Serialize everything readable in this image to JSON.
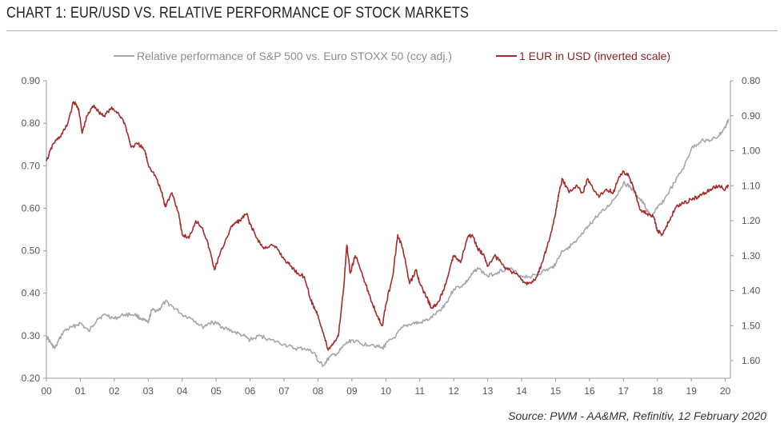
{
  "header": {
    "title": "CHART 1: EUR/USD VS. RELATIVE PERFORMANCE OF STOCK MARKETS"
  },
  "footer": {
    "source": "Source: PWM - AA&MR, Refinitiv, 12 February 2020"
  },
  "chart_data": {
    "type": "line",
    "legend_position": "top",
    "grid": false,
    "x_ticks": [
      "00",
      "01",
      "02",
      "03",
      "04",
      "05",
      "06",
      "07",
      "08",
      "09",
      "10",
      "11",
      "12",
      "13",
      "14",
      "15",
      "16",
      "17",
      "18",
      "19",
      "20"
    ],
    "xlim": [
      2000.0,
      2020.15
    ],
    "y_left": {
      "ticks": [
        "0.20",
        "0.30",
        "0.40",
        "0.50",
        "0.60",
        "0.70",
        "0.80",
        "0.90"
      ],
      "ylim": [
        0.2,
        0.9
      ]
    },
    "y_right": {
      "ticks": [
        "0.80",
        "0.90",
        "1.00",
        "1.10",
        "1.20",
        "1.30",
        "1.40",
        "1.50",
        "1.60"
      ],
      "ylim": [
        0.8,
        1.65
      ],
      "inverted": true
    },
    "series": [
      {
        "name": "Relative performance of S&P 500 vs. Euro STOXX 50 (ccy adj.)",
        "axis": "left",
        "color": "#a6a6a6",
        "points": [
          [
            2000.0,
            0.3
          ],
          [
            2000.15,
            0.28
          ],
          [
            2000.25,
            0.27
          ],
          [
            2000.5,
            0.31
          ],
          [
            2000.75,
            0.32
          ],
          [
            2001.0,
            0.33
          ],
          [
            2001.25,
            0.31
          ],
          [
            2001.5,
            0.34
          ],
          [
            2001.75,
            0.35
          ],
          [
            2002.0,
            0.34
          ],
          [
            2002.3,
            0.35
          ],
          [
            2002.6,
            0.35
          ],
          [
            2002.8,
            0.34
          ],
          [
            2003.0,
            0.33
          ],
          [
            2003.1,
            0.36
          ],
          [
            2003.3,
            0.36
          ],
          [
            2003.5,
            0.38
          ],
          [
            2003.7,
            0.37
          ],
          [
            2004.0,
            0.35
          ],
          [
            2004.3,
            0.34
          ],
          [
            2004.6,
            0.32
          ],
          [
            2004.8,
            0.33
          ],
          [
            2005.0,
            0.33
          ],
          [
            2005.2,
            0.32
          ],
          [
            2005.5,
            0.31
          ],
          [
            2005.8,
            0.3
          ],
          [
            2006.0,
            0.29
          ],
          [
            2006.3,
            0.3
          ],
          [
            2006.6,
            0.29
          ],
          [
            2007.0,
            0.28
          ],
          [
            2007.3,
            0.27
          ],
          [
            2007.6,
            0.27
          ],
          [
            2007.9,
            0.26
          ],
          [
            2008.0,
            0.24
          ],
          [
            2008.15,
            0.23
          ],
          [
            2008.35,
            0.25
          ],
          [
            2008.6,
            0.26
          ],
          [
            2008.8,
            0.28
          ],
          [
            2009.0,
            0.29
          ],
          [
            2009.3,
            0.28
          ],
          [
            2009.6,
            0.28
          ],
          [
            2009.9,
            0.27
          ],
          [
            2010.0,
            0.28
          ],
          [
            2010.3,
            0.3
          ],
          [
            2010.5,
            0.32
          ],
          [
            2010.8,
            0.33
          ],
          [
            2011.0,
            0.33
          ],
          [
            2011.3,
            0.34
          ],
          [
            2011.6,
            0.36
          ],
          [
            2011.8,
            0.38
          ],
          [
            2012.0,
            0.41
          ],
          [
            2012.3,
            0.42
          ],
          [
            2012.5,
            0.44
          ],
          [
            2012.7,
            0.46
          ],
          [
            2013.0,
            0.44
          ],
          [
            2013.3,
            0.45
          ],
          [
            2013.6,
            0.46
          ],
          [
            2014.0,
            0.44
          ],
          [
            2014.3,
            0.44
          ],
          [
            2014.6,
            0.45
          ],
          [
            2014.9,
            0.46
          ],
          [
            2015.0,
            0.47
          ],
          [
            2015.2,
            0.5
          ],
          [
            2015.4,
            0.51
          ],
          [
            2015.6,
            0.52
          ],
          [
            2015.8,
            0.54
          ],
          [
            2016.0,
            0.56
          ],
          [
            2016.2,
            0.58
          ],
          [
            2016.5,
            0.6
          ],
          [
            2016.8,
            0.63
          ],
          [
            2017.0,
            0.66
          ],
          [
            2017.2,
            0.65
          ],
          [
            2017.4,
            0.63
          ],
          [
            2017.6,
            0.61
          ],
          [
            2017.8,
            0.58
          ],
          [
            2018.0,
            0.6
          ],
          [
            2018.2,
            0.62
          ],
          [
            2018.5,
            0.66
          ],
          [
            2018.8,
            0.7
          ],
          [
            2019.0,
            0.74
          ],
          [
            2019.3,
            0.76
          ],
          [
            2019.6,
            0.76
          ],
          [
            2019.8,
            0.77
          ],
          [
            2020.0,
            0.79
          ],
          [
            2020.1,
            0.81
          ]
        ]
      },
      {
        "name": "1 EUR in USD (inverted scale)",
        "axis": "right",
        "color": "#a62b2b",
        "points": [
          [
            2000.0,
            1.03
          ],
          [
            2000.2,
            0.98
          ],
          [
            2000.4,
            0.96
          ],
          [
            2000.6,
            0.93
          ],
          [
            2000.8,
            0.86
          ],
          [
            2000.95,
            0.88
          ],
          [
            2001.05,
            0.95
          ],
          [
            2001.2,
            0.9
          ],
          [
            2001.4,
            0.87
          ],
          [
            2001.55,
            0.89
          ],
          [
            2001.7,
            0.9
          ],
          [
            2001.9,
            0.88
          ],
          [
            2002.1,
            0.89
          ],
          [
            2002.3,
            0.92
          ],
          [
            2002.5,
            0.99
          ],
          [
            2002.7,
            0.98
          ],
          [
            2002.9,
            1.0
          ],
          [
            2003.0,
            1.04
          ],
          [
            2003.2,
            1.07
          ],
          [
            2003.4,
            1.12
          ],
          [
            2003.5,
            1.16
          ],
          [
            2003.7,
            1.12
          ],
          [
            2003.9,
            1.18
          ],
          [
            2004.0,
            1.24
          ],
          [
            2004.2,
            1.25
          ],
          [
            2004.4,
            1.2
          ],
          [
            2004.6,
            1.22
          ],
          [
            2004.8,
            1.28
          ],
          [
            2004.95,
            1.34
          ],
          [
            2005.1,
            1.3
          ],
          [
            2005.3,
            1.25
          ],
          [
            2005.5,
            1.21
          ],
          [
            2005.7,
            1.2
          ],
          [
            2005.9,
            1.18
          ],
          [
            2006.0,
            1.21
          ],
          [
            2006.2,
            1.25
          ],
          [
            2006.4,
            1.28
          ],
          [
            2006.6,
            1.27
          ],
          [
            2006.8,
            1.28
          ],
          [
            2007.0,
            1.31
          ],
          [
            2007.2,
            1.33
          ],
          [
            2007.4,
            1.35
          ],
          [
            2007.6,
            1.36
          ],
          [
            2007.8,
            1.43
          ],
          [
            2007.9,
            1.45
          ],
          [
            2008.0,
            1.47
          ],
          [
            2008.15,
            1.52
          ],
          [
            2008.3,
            1.57
          ],
          [
            2008.45,
            1.55
          ],
          [
            2008.6,
            1.53
          ],
          [
            2008.75,
            1.4
          ],
          [
            2008.85,
            1.27
          ],
          [
            2008.95,
            1.35
          ],
          [
            2009.1,
            1.3
          ],
          [
            2009.3,
            1.35
          ],
          [
            2009.5,
            1.41
          ],
          [
            2009.7,
            1.46
          ],
          [
            2009.9,
            1.5
          ],
          [
            2010.0,
            1.44
          ],
          [
            2010.2,
            1.36
          ],
          [
            2010.35,
            1.24
          ],
          [
            2010.5,
            1.28
          ],
          [
            2010.7,
            1.38
          ],
          [
            2010.9,
            1.34
          ],
          [
            2011.0,
            1.38
          ],
          [
            2011.2,
            1.42
          ],
          [
            2011.35,
            1.45
          ],
          [
            2011.5,
            1.44
          ],
          [
            2011.7,
            1.4
          ],
          [
            2011.9,
            1.33
          ],
          [
            2012.0,
            1.3
          ],
          [
            2012.2,
            1.32
          ],
          [
            2012.4,
            1.25
          ],
          [
            2012.55,
            1.24
          ],
          [
            2012.7,
            1.28
          ],
          [
            2012.9,
            1.3
          ],
          [
            2013.0,
            1.33
          ],
          [
            2013.2,
            1.3
          ],
          [
            2013.4,
            1.32
          ],
          [
            2013.6,
            1.34
          ],
          [
            2013.8,
            1.35
          ],
          [
            2014.0,
            1.37
          ],
          [
            2014.2,
            1.38
          ],
          [
            2014.4,
            1.37
          ],
          [
            2014.6,
            1.32
          ],
          [
            2014.8,
            1.26
          ],
          [
            2015.0,
            1.18
          ],
          [
            2015.1,
            1.12
          ],
          [
            2015.2,
            1.08
          ],
          [
            2015.4,
            1.12
          ],
          [
            2015.6,
            1.1
          ],
          [
            2015.8,
            1.12
          ],
          [
            2015.95,
            1.08
          ],
          [
            2016.1,
            1.11
          ],
          [
            2016.3,
            1.13
          ],
          [
            2016.5,
            1.11
          ],
          [
            2016.7,
            1.12
          ],
          [
            2016.85,
            1.08
          ],
          [
            2017.0,
            1.06
          ],
          [
            2017.15,
            1.07
          ],
          [
            2017.35,
            1.12
          ],
          [
            2017.5,
            1.17
          ],
          [
            2017.7,
            1.18
          ],
          [
            2017.9,
            1.19
          ],
          [
            2018.0,
            1.23
          ],
          [
            2018.15,
            1.24
          ],
          [
            2018.35,
            1.2
          ],
          [
            2018.55,
            1.16
          ],
          [
            2018.75,
            1.15
          ],
          [
            2019.0,
            1.14
          ],
          [
            2019.2,
            1.13
          ],
          [
            2019.4,
            1.12
          ],
          [
            2019.6,
            1.11
          ],
          [
            2019.8,
            1.1
          ],
          [
            2020.0,
            1.11
          ],
          [
            2020.1,
            1.1
          ]
        ]
      }
    ]
  }
}
